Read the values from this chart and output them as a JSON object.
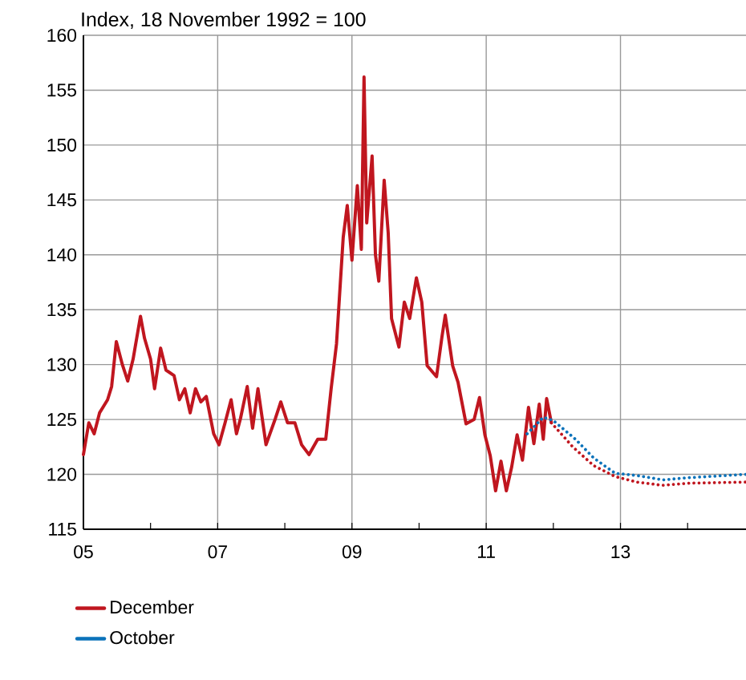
{
  "chart_data": {
    "type": "line",
    "ylabel": "Index, 18 November 1992 = 100",
    "xlim": [
      2005,
      2014.87
    ],
    "ylim": [
      115,
      160
    ],
    "xticks": [
      {
        "value": 2005,
        "label": "05"
      },
      {
        "value": 2006,
        "label": null
      },
      {
        "value": 2007,
        "label": "07"
      },
      {
        "value": 2008,
        "label": null
      },
      {
        "value": 2009,
        "label": "09"
      },
      {
        "value": 2010,
        "label": null
      },
      {
        "value": 2011,
        "label": "11"
      },
      {
        "value": 2012,
        "label": null
      },
      {
        "value": 2013,
        "label": "13"
      },
      {
        "value": 2014,
        "label": null
      }
    ],
    "yticks": [
      115,
      120,
      125,
      130,
      135,
      140,
      145,
      150,
      155,
      160
    ],
    "grid": true,
    "legend": "bottom",
    "marker": "none",
    "series": [
      {
        "name": "December",
        "color": "#c0161f",
        "line_style": "solid",
        "x": [
          2005.0,
          2005.08,
          2005.16,
          2005.24,
          2005.36,
          2005.42,
          2005.49,
          2005.58,
          2005.66,
          2005.74,
          2005.85,
          2005.91,
          2006.0,
          2006.06,
          2006.15,
          2006.23,
          2006.35,
          2006.43,
          2006.51,
          2006.59,
          2006.67,
          2006.75,
          2006.83,
          2006.94,
          2007.02,
          2007.11,
          2007.2,
          2007.28,
          2007.34,
          2007.44,
          2007.52,
          2007.6,
          2007.72,
          2007.86,
          2007.94,
          2008.04,
          2008.15,
          2008.25,
          2008.36,
          2008.49,
          2008.61,
          2008.69,
          2008.77,
          2008.81,
          2008.87,
          2008.93,
          2009.0,
          2009.08,
          2009.14,
          2009.18,
          2009.22,
          2009.3,
          2009.35,
          2009.4,
          2009.48,
          2009.54,
          2009.59,
          2009.7,
          2009.78,
          2009.86,
          2009.96,
          2010.04,
          2010.12,
          2010.26,
          2010.34,
          2010.39,
          2010.5,
          2010.58,
          2010.7,
          2010.82,
          2010.9,
          2010.98,
          2011.06,
          2011.14,
          2011.22,
          2011.3,
          2011.38,
          2011.46,
          2011.54,
          2011.63,
          2011.71,
          2011.79,
          2011.85,
          2011.9,
          2011.97
        ],
        "values": [
          121.8,
          124.7,
          123.7,
          125.6,
          126.8,
          128.0,
          132.1,
          130.0,
          128.5,
          130.5,
          134.4,
          132.4,
          130.5,
          127.8,
          131.5,
          129.5,
          129.0,
          126.8,
          127.8,
          125.6,
          127.8,
          126.6,
          127.1,
          123.7,
          122.7,
          124.7,
          126.8,
          123.7,
          125.1,
          128.0,
          124.2,
          127.8,
          122.7,
          125.1,
          126.6,
          124.7,
          124.7,
          122.7,
          121.8,
          123.2,
          123.2,
          127.8,
          131.9,
          135.8,
          141.6,
          144.5,
          139.5,
          146.3,
          140.5,
          156.2,
          142.9,
          149.0,
          140.0,
          137.6,
          146.8,
          142.0,
          134.2,
          131.6,
          135.7,
          134.2,
          137.9,
          135.7,
          129.9,
          128.9,
          132.5,
          134.5,
          129.9,
          128.4,
          124.6,
          125.0,
          127.0,
          123.6,
          121.7,
          118.5,
          121.2,
          118.5,
          120.7,
          123.6,
          121.3,
          126.1,
          122.8,
          126.4,
          123.2,
          126.9,
          124.7
        ]
      },
      {
        "color": "#c0161f",
        "line_style": "dotted",
        "x": [
          2011.97,
          2012.29,
          2012.6,
          2012.92,
          2013.24,
          2013.63,
          2014.03,
          2014.87
        ],
        "values": [
          124.7,
          122.5,
          120.8,
          119.8,
          119.3,
          119.0,
          119.2,
          119.3
        ]
      },
      {
        "name": "October",
        "color": "#0a72ba",
        "line_style": "dotted",
        "x": [
          2011.61,
          2011.85,
          2012.0,
          2012.33,
          2012.6,
          2012.92,
          2013.24,
          2013.63,
          2014.03,
          2014.87
        ],
        "values": [
          123.7,
          125.2,
          124.9,
          123.2,
          121.5,
          120.1,
          119.9,
          119.5,
          119.7,
          120.0
        ]
      }
    ]
  }
}
